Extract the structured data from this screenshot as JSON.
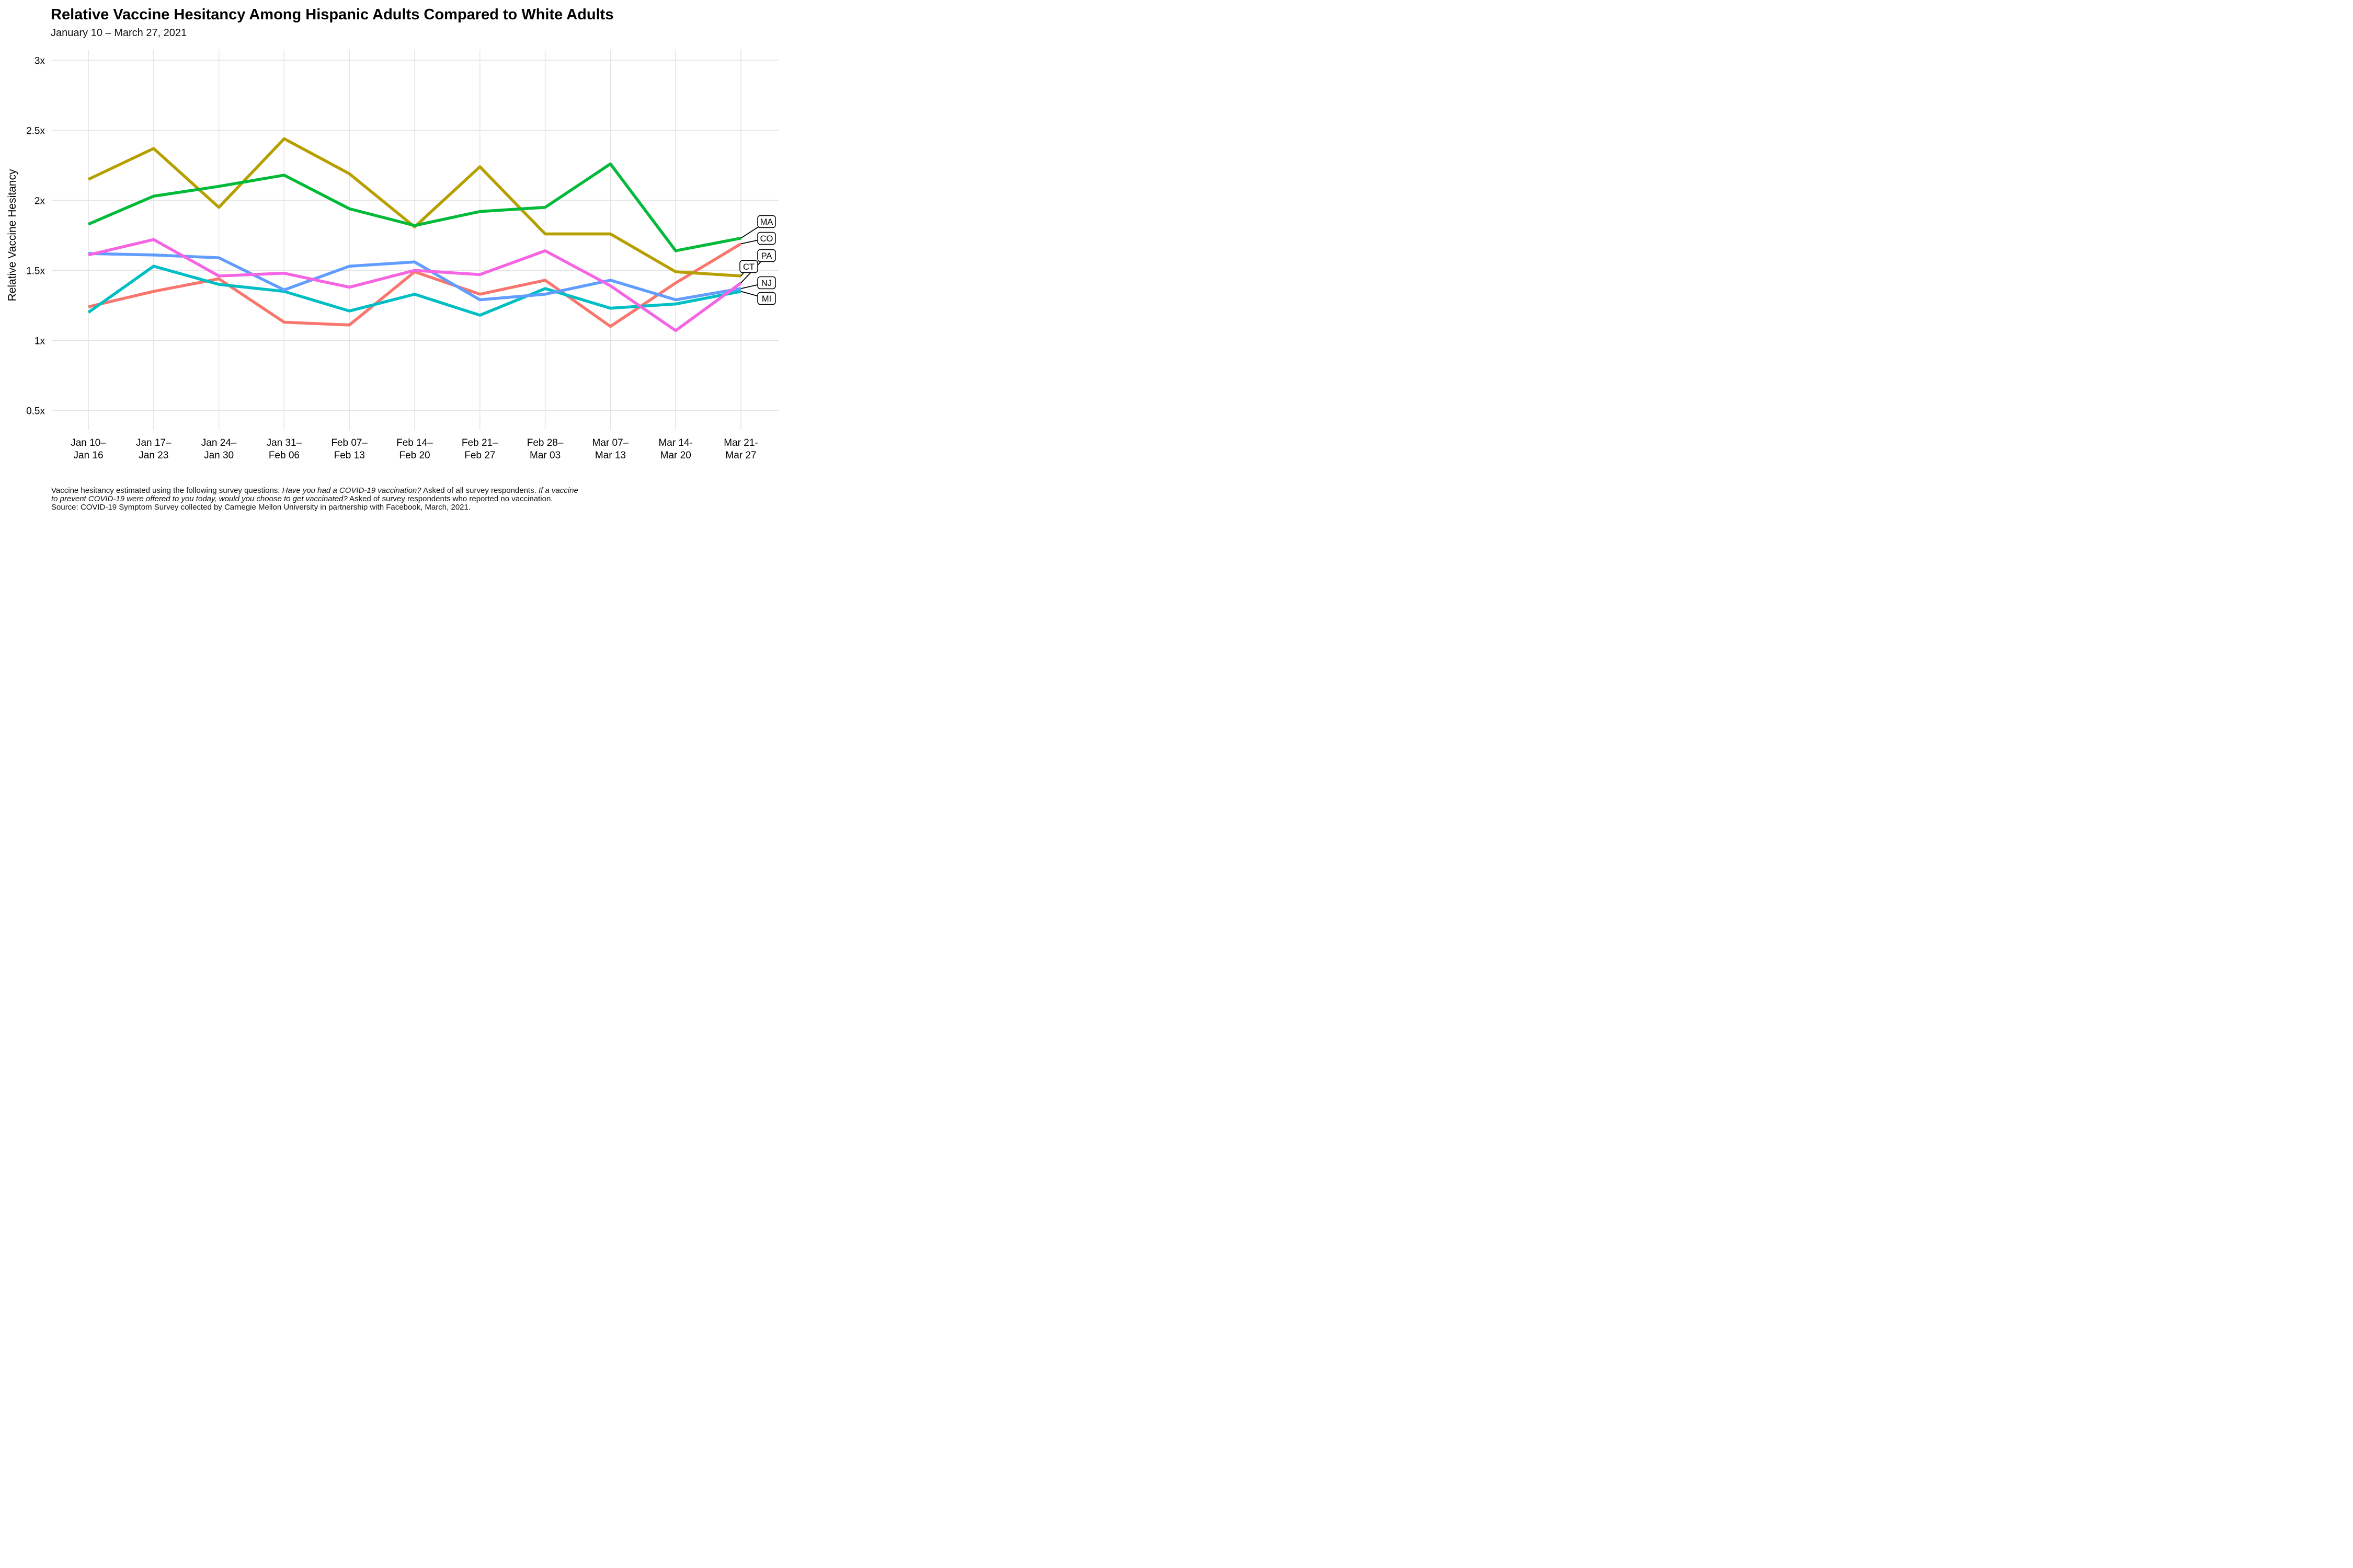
{
  "title": "Relative Vaccine Hesitancy Among Hispanic Adults Compared to White Adults",
  "subtitle": "January 10 – March 27, 2021",
  "y_axis": {
    "title": "Relative Vaccine Hesitancy",
    "ticks": [
      {
        "label": "0.5x",
        "value": 0.5
      },
      {
        "label": "1x",
        "value": 1.0
      },
      {
        "label": "1.5x",
        "value": 1.5
      },
      {
        "label": "2x",
        "value": 2.0
      },
      {
        "label": "2.5x",
        "value": 2.5
      },
      {
        "label": "3x",
        "value": 3.0
      }
    ]
  },
  "chart_data": {
    "type": "line",
    "categories": [
      [
        "Jan 10–",
        "Jan 16"
      ],
      [
        "Jan 17–",
        "Jan 23"
      ],
      [
        "Jan 24–",
        "Jan 30"
      ],
      [
        "Jan 31–",
        "Feb 06"
      ],
      [
        "Feb 07–",
        "Feb 13"
      ],
      [
        "Feb 14–",
        "Feb 20"
      ],
      [
        "Feb 21–",
        "Feb 27"
      ],
      [
        "Feb 28–",
        "Mar 03"
      ],
      [
        "Mar 07–",
        "Mar 13"
      ],
      [
        "Mar 14-",
        "Mar 20"
      ],
      [
        "Mar 21-",
        "Mar 27"
      ]
    ],
    "ylabel": "Relative Vaccine Hesitancy",
    "ylim": [
      0.5,
      3.0
    ],
    "grid": true,
    "legend_position": "right-edge-labels",
    "series": [
      {
        "name": "CO",
        "color": "#F8766D",
        "values": [
          1.24,
          1.35,
          1.44,
          1.13,
          1.11,
          1.49,
          1.33,
          1.43,
          1.1,
          1.41,
          1.69
        ]
      },
      {
        "name": "CT",
        "color": "#B79F00",
        "values": [
          2.15,
          2.37,
          1.95,
          2.44,
          2.19,
          1.81,
          2.24,
          1.76,
          1.76,
          1.49,
          1.46
        ]
      },
      {
        "name": "MA",
        "color": "#00BA38",
        "values": [
          1.83,
          2.03,
          2.1,
          2.18,
          1.94,
          1.82,
          1.92,
          1.95,
          2.26,
          1.64,
          1.73
        ]
      },
      {
        "name": "MI",
        "color": "#00BFC4",
        "values": [
          1.2,
          1.53,
          1.4,
          1.35,
          1.21,
          1.33,
          1.18,
          1.37,
          1.23,
          1.26,
          1.35
        ]
      },
      {
        "name": "NJ",
        "color": "#619CFF",
        "values": [
          1.62,
          1.61,
          1.59,
          1.36,
          1.53,
          1.56,
          1.29,
          1.33,
          1.43,
          1.29,
          1.37
        ]
      },
      {
        "name": "PA",
        "color": "#F564E3",
        "values": [
          1.61,
          1.72,
          1.46,
          1.48,
          1.38,
          1.5,
          1.47,
          1.64,
          1.39,
          1.07,
          1.41
        ]
      }
    ]
  },
  "colors": {
    "grid": "#E4E4E4",
    "text": "#000000",
    "label_box_border": "#000000",
    "label_box_fill": "#FFFFFF"
  },
  "footnote": {
    "lines": [
      {
        "segments": [
          {
            "text": "Vaccine hesitancy estimated using the following survey questions: ",
            "italic": false
          },
          {
            "text": "Have you had a COVID-19 vaccination?",
            "italic": true
          },
          {
            "text": " Asked of all survey respondents. ",
            "italic": false
          },
          {
            "text": "If a vaccine",
            "italic": true
          }
        ]
      },
      {
        "segments": [
          {
            "text": "to prevent COVID-19 were offered to you today, would you choose to get vaccinated?",
            "italic": true
          },
          {
            "text": " Asked of survey respondents who reported no vaccination.",
            "italic": false
          }
        ]
      },
      {
        "segments": [
          {
            "text": "Source: COVID-19 Symptom Survey collected by Carnegie Mellon University in partnership with Facebook, March, 2021.",
            "italic": false
          }
        ]
      }
    ]
  }
}
